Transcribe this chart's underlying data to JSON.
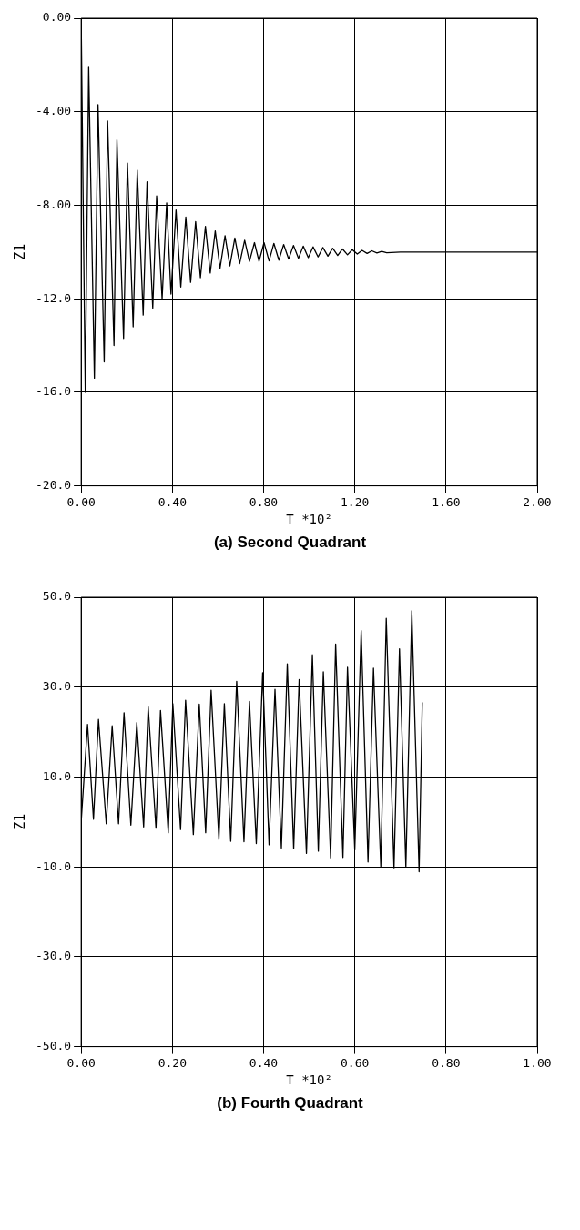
{
  "chart_data": [
    {
      "type": "line",
      "title": "(a) Second Quadrant",
      "xlabel": "T *10²",
      "ylabel": "Z1",
      "xlim": [
        0,
        2
      ],
      "xticks": [
        {
          "value": 0,
          "label": "0.00"
        },
        {
          "value": 0.4,
          "label": "0.40"
        },
        {
          "value": 0.8,
          "label": "0.80"
        },
        {
          "value": 1.2,
          "label": "1.20"
        },
        {
          "value": 1.6,
          "label": "1.60"
        },
        {
          "value": 2,
          "label": "2.00"
        }
      ],
      "ylim": [
        -20,
        0
      ],
      "yticks": [
        {
          "value": -20,
          "label": "-20.0"
        },
        {
          "value": -16,
          "label": "-16.0"
        },
        {
          "value": -12,
          "label": "-12.0"
        },
        {
          "value": -8,
          "label": "-8.00"
        },
        {
          "value": -4,
          "label": "-4.00"
        },
        {
          "value": 0,
          "label": "0.00"
        }
      ],
      "grid": true,
      "marker": "none",
      "line_style": "solid",
      "series": [
        {
          "color": "#000000",
          "x": [
            0,
            0.018,
            0.033,
            0.058,
            0.074,
            0.101,
            0.116,
            0.144,
            0.157,
            0.186,
            0.203,
            0.228,
            0.246,
            0.272,
            0.289,
            0.314,
            0.331,
            0.355,
            0.375,
            0.394,
            0.416,
            0.437,
            0.459,
            0.48,
            0.502,
            0.523,
            0.545,
            0.566,
            0.588,
            0.609,
            0.631,
            0.652,
            0.674,
            0.695,
            0.717,
            0.738,
            0.76,
            0.78,
            0.802,
            0.824,
            0.845,
            0.867,
            0.888,
            0.91,
            0.931,
            0.953,
            0.974,
            0.996,
            1.017,
            1.039,
            1.06,
            1.082,
            1.103,
            1.125,
            1.146,
            1.168,
            1.189,
            1.211,
            1.232,
            1.254,
            1.275,
            1.297,
            1.318,
            1.34,
            1.4,
            1.6,
            2.0
          ],
          "values": [
            0,
            -16.0,
            -2.1,
            -15.4,
            -3.7,
            -14.7,
            -4.4,
            -14.0,
            -5.2,
            -13.7,
            -6.2,
            -13.2,
            -6.5,
            -12.7,
            -7.0,
            -12.4,
            -7.6,
            -12.0,
            -7.9,
            -11.8,
            -8.2,
            -11.5,
            -8.5,
            -11.3,
            -8.7,
            -11.1,
            -8.9,
            -10.9,
            -9.1,
            -10.7,
            -9.3,
            -10.6,
            -9.4,
            -10.5,
            -9.5,
            -10.4,
            -9.6,
            -10.4,
            -9.6,
            -10.38,
            -9.63,
            -10.35,
            -9.68,
            -10.3,
            -9.72,
            -10.27,
            -9.75,
            -10.24,
            -9.78,
            -10.21,
            -9.81,
            -10.18,
            -9.84,
            -10.15,
            -9.87,
            -10.12,
            -9.9,
            -10.09,
            -9.93,
            -10.06,
            -9.95,
            -10.04,
            -9.97,
            -10.03,
            -10.0,
            -10.0,
            -10.0
          ]
        }
      ]
    },
    {
      "type": "line",
      "title": "(b) Fourth Quadrant",
      "xlabel": "T *10²",
      "ylabel": "Z1",
      "xlim": [
        0,
        1
      ],
      "xticks": [
        {
          "value": 0,
          "label": "0.00"
        },
        {
          "value": 0.2,
          "label": "0.20"
        },
        {
          "value": 0.4,
          "label": "0.40"
        },
        {
          "value": 0.6,
          "label": "0.60"
        },
        {
          "value": 0.8,
          "label": "0.80"
        },
        {
          "value": 1,
          "label": "1.00"
        }
      ],
      "ylim": [
        -50,
        50
      ],
      "yticks": [
        {
          "value": -50,
          "label": "-50.0"
        },
        {
          "value": -30,
          "label": "-30.0"
        },
        {
          "value": -10,
          "label": "-10.0"
        },
        {
          "value": 10,
          "label": "10.0"
        },
        {
          "value": 30,
          "label": "30.0"
        },
        {
          "value": 50,
          "label": "50.0"
        }
      ],
      "grid": true,
      "marker": "none",
      "line_style": "solid",
      "series": [
        {
          "color": "#000000",
          "x": [
            0,
            0.014,
            0.027,
            0.038,
            0.055,
            0.068,
            0.082,
            0.094,
            0.109,
            0.122,
            0.137,
            0.147,
            0.164,
            0.174,
            0.191,
            0.201,
            0.218,
            0.229,
            0.246,
            0.259,
            0.273,
            0.285,
            0.302,
            0.314,
            0.328,
            0.341,
            0.357,
            0.369,
            0.384,
            0.398,
            0.412,
            0.425,
            0.439,
            0.452,
            0.466,
            0.478,
            0.494,
            0.507,
            0.52,
            0.531,
            0.547,
            0.558,
            0.574,
            0.584,
            0.6,
            0.614,
            0.629,
            0.641,
            0.657,
            0.669,
            0.686,
            0.698,
            0.712,
            0.725,
            0.741,
            0.748
          ],
          "values": [
            0,
            21.7,
            0.6,
            22.8,
            -0.4,
            21.4,
            -0.4,
            24.3,
            -0.7,
            22.1,
            -1.1,
            25.6,
            -1.4,
            24.8,
            -2.4,
            26.3,
            -1.7,
            27.1,
            -2.8,
            26.2,
            -2.4,
            29.3,
            -3.9,
            26.3,
            -4.3,
            31.3,
            -4.4,
            26.8,
            -4.8,
            33.2,
            -5.1,
            29.5,
            -5.8,
            35.2,
            -6.0,
            31.7,
            -7.0,
            37.2,
            -6.5,
            33.4,
            -8.0,
            39.6,
            -7.9,
            34.4,
            -6.2,
            42.6,
            -8.9,
            34.2,
            -9.9,
            45.3,
            -10.2,
            38.5,
            -10.0,
            47.0,
            -11.1,
            26.6
          ]
        }
      ]
    }
  ]
}
